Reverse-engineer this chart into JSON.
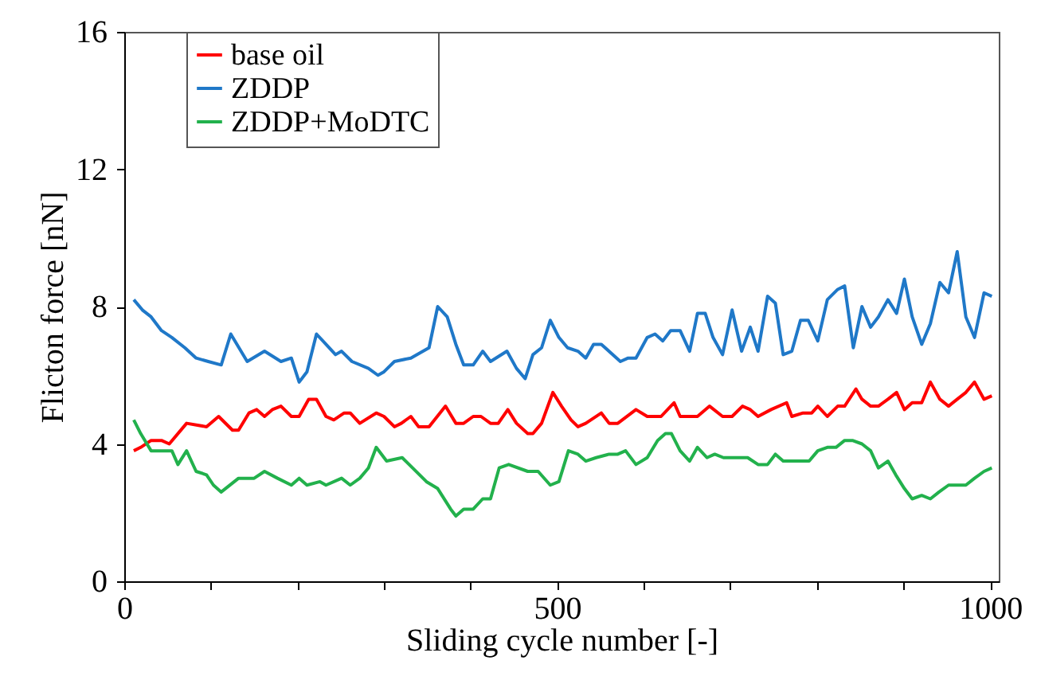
{
  "chart_data": {
    "type": "line",
    "xlabel": "Sliding cycle number [-]",
    "ylabel": "Flicton force [nN]",
    "xlim": [
      0,
      1010
    ],
    "ylim": [
      0,
      16
    ],
    "xticks": [
      0,
      {
        "value": 100,
        "label": null
      },
      {
        "value": 200,
        "label": null
      },
      {
        "value": 300,
        "label": null
      },
      {
        "value": 400,
        "label": null
      },
      500,
      {
        "value": 600,
        "label": null
      },
      {
        "value": 700,
        "label": null
      },
      {
        "value": 800,
        "label": null
      },
      {
        "value": 900,
        "label": null
      },
      1000
    ],
    "yticks": [
      0,
      4,
      8,
      12,
      16
    ],
    "grid": false,
    "legend": "top left",
    "marker": "none",
    "line_style": "solid",
    "series": [
      {
        "name": "base oil",
        "color": "#ff0000",
        "x": [
          11,
          19,
          31,
          43,
          52,
          72,
          95,
          109,
          125,
          132,
          144,
          153,
          162,
          171,
          181,
          193,
          202,
          213,
          222,
          233,
          242,
          254,
          261,
          272,
          291,
          300,
          312,
          320,
          331,
          340,
          352,
          371,
          383,
          392,
          403,
          412,
          423,
          432,
          443,
          453,
          466,
          472,
          482,
          495,
          505,
          516,
          524,
          533,
          551,
          560,
          570,
          591,
          604,
          620,
          635,
          642,
          662,
          676,
          691,
          702,
          714,
          723,
          732,
          747,
          765,
          771,
          784,
          794,
          801,
          812,
          824,
          832,
          845,
          852,
          862,
          871,
          882,
          892,
          901,
          910,
          921,
          931,
          942,
          952,
          962,
          972,
          982,
          993,
          1002
        ],
        "values": [
          3.8,
          3.9,
          4.1,
          4.1,
          4.0,
          4.6,
          4.5,
          4.8,
          4.4,
          4.4,
          4.9,
          5.0,
          4.8,
          5.0,
          5.1,
          4.8,
          4.8,
          5.3,
          5.3,
          4.8,
          4.7,
          4.9,
          4.9,
          4.6,
          4.9,
          4.8,
          4.5,
          4.6,
          4.8,
          4.5,
          4.5,
          5.1,
          4.6,
          4.6,
          4.8,
          4.8,
          4.6,
          4.6,
          5.0,
          4.6,
          4.3,
          4.3,
          4.6,
          5.5,
          5.1,
          4.7,
          4.5,
          4.6,
          4.9,
          4.6,
          4.6,
          5.0,
          4.8,
          4.8,
          5.2,
          4.8,
          4.8,
          5.1,
          4.8,
          4.8,
          5.1,
          5.0,
          4.8,
          5.0,
          5.2,
          4.8,
          4.9,
          4.9,
          5.1,
          4.8,
          5.1,
          5.1,
          5.6,
          5.3,
          5.1,
          5.1,
          5.3,
          5.5,
          5.0,
          5.2,
          5.2,
          5.8,
          5.3,
          5.1,
          5.3,
          5.5,
          5.8,
          5.3,
          5.4
        ]
      },
      {
        "name": "ZDDP",
        "color": "#1f78c8",
        "x": [
          11,
          21,
          31,
          43,
          55,
          70,
          83,
          97,
          112,
          123,
          142,
          162,
          181,
          193,
          202,
          211,
          222,
          233,
          244,
          251,
          263,
          282,
          293,
          300,
          312,
          331,
          352,
          362,
          373,
          383,
          392,
          403,
          414,
          423,
          442,
          453,
          463,
          472,
          482,
          492,
          502,
          512,
          524,
          533,
          542,
          551,
          573,
          582,
          591,
          604,
          613,
          622,
          631,
          642,
          653,
          662,
          671,
          680,
          691,
          702,
          713,
          723,
          732,
          743,
          752,
          761,
          771,
          781,
          790,
          801,
          812,
          824,
          832,
          842,
          852,
          862,
          871,
          882,
          892,
          901,
          910,
          921,
          931,
          942,
          952,
          962,
          972,
          982,
          993,
          1002
        ],
        "values": [
          8.2,
          7.9,
          7.7,
          7.3,
          7.1,
          6.8,
          6.5,
          6.4,
          6.3,
          7.2,
          6.4,
          6.7,
          6.4,
          6.5,
          5.8,
          6.1,
          7.2,
          6.9,
          6.6,
          6.7,
          6.4,
          6.2,
          6.0,
          6.1,
          6.4,
          6.5,
          6.8,
          8.0,
          7.7,
          6.9,
          6.3,
          6.3,
          6.7,
          6.4,
          6.7,
          6.2,
          5.9,
          6.6,
          6.8,
          7.6,
          7.1,
          6.8,
          6.7,
          6.5,
          6.9,
          6.9,
          6.4,
          6.5,
          6.5,
          7.1,
          7.2,
          7.0,
          7.3,
          7.3,
          6.7,
          7.8,
          7.8,
          7.1,
          6.6,
          7.9,
          6.7,
          7.4,
          6.7,
          8.3,
          8.1,
          6.6,
          6.7,
          7.6,
          7.6,
          7.0,
          8.2,
          8.5,
          8.6,
          6.8,
          8.0,
          7.4,
          7.7,
          8.2,
          7.8,
          8.8,
          7.7,
          6.9,
          7.5,
          8.7,
          8.4,
          9.6,
          7.7,
          7.1,
          8.4,
          8.3
        ]
      },
      {
        "name": "ZDDP+MoDTC",
        "color": "#22b14c",
        "x": [
          11,
          19,
          31,
          43,
          55,
          62,
          72,
          83,
          95,
          103,
          112,
          132,
          144,
          150,
          162,
          177,
          193,
          202,
          211,
          226,
          233,
          251,
          261,
          272,
          282,
          291,
          303,
          321,
          333,
          349,
          362,
          377,
          383,
          392,
          403,
          414,
          423,
          433,
          444,
          466,
          478,
          492,
          502,
          513,
          524,
          533,
          545,
          560,
          570,
          579,
          591,
          604,
          616,
          625,
          632,
          642,
          653,
          662,
          673,
          682,
          692,
          720,
          732,
          743,
          752,
          761,
          771,
          791,
          801,
          812,
          822,
          832,
          841,
          852,
          862,
          871,
          882,
          891,
          901,
          910,
          921,
          931,
          941,
          952,
          962,
          972,
          982,
          993,
          1002
        ],
        "values": [
          4.7,
          4.3,
          3.8,
          3.8,
          3.8,
          3.4,
          3.8,
          3.2,
          3.1,
          2.8,
          2.6,
          3.0,
          3.0,
          3.0,
          3.2,
          3.0,
          2.8,
          3.0,
          2.8,
          2.9,
          2.8,
          3.0,
          2.8,
          3.0,
          3.3,
          3.9,
          3.5,
          3.6,
          3.3,
          2.9,
          2.7,
          2.1,
          1.9,
          2.1,
          2.1,
          2.4,
          2.4,
          3.3,
          3.4,
          3.2,
          3.2,
          2.8,
          2.9,
          3.8,
          3.7,
          3.5,
          3.6,
          3.7,
          3.7,
          3.8,
          3.4,
          3.6,
          4.1,
          4.3,
          4.3,
          3.8,
          3.5,
          3.9,
          3.6,
          3.7,
          3.6,
          3.6,
          3.4,
          3.4,
          3.7,
          3.5,
          3.5,
          3.5,
          3.8,
          3.9,
          3.9,
          4.1,
          4.1,
          4.0,
          3.8,
          3.3,
          3.5,
          3.1,
          2.7,
          2.4,
          2.5,
          2.4,
          2.6,
          2.8,
          2.8,
          2.8,
          3.0,
          3.2,
          3.3
        ]
      }
    ]
  }
}
